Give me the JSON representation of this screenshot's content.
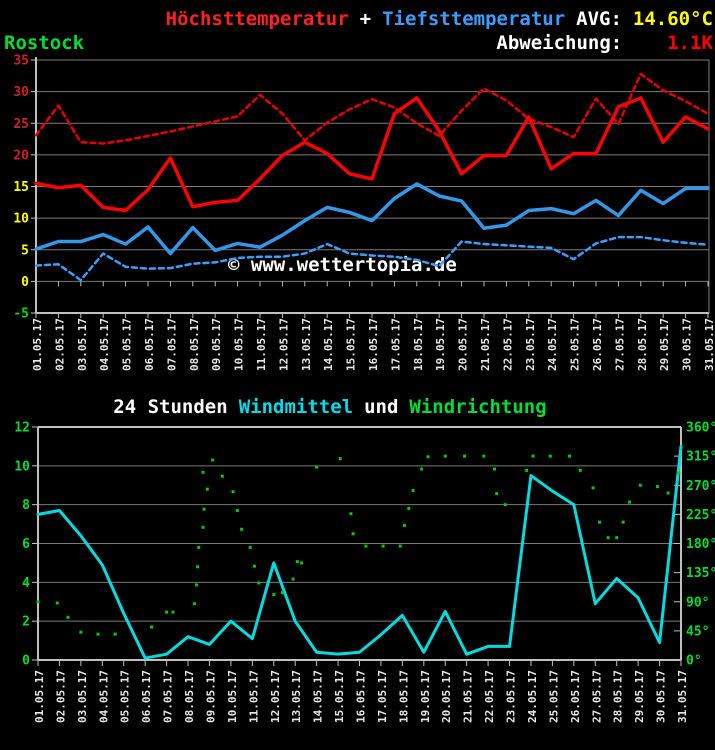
{
  "header": {
    "series1_label": "Höchsttemperatur",
    "plus": "+",
    "series2_label": "Tiefsttemperatur",
    "avg_label": "AVG:",
    "avg_value": "14.60°C",
    "station": "Rostock",
    "deviation_label": "Abweichung:",
    "deviation_value": "1.1K"
  },
  "watermark": "© www.wettertopia.de",
  "wind_title": {
    "prefix": "24 Stunden",
    "speed_label": "Windmittel",
    "conj": "und",
    "direction_label": "Windrichtung"
  },
  "colors": {
    "background": "#000000",
    "temp_high": "#ff0000",
    "temp_high_dashed": "#e80000",
    "temp_low": "#3498e8",
    "temp_low_dashed": "#3aa0ff",
    "wind_speed": "#00dce0",
    "wind_direction": "#00cc00",
    "grid": "#7a7a7a",
    "axis": "#c0c0c0",
    "tick_label_hot": "#cc2222",
    "tick_label_mild": "#ffff00",
    "tick_label_cold": "#00dd00",
    "axis_label_green": "#00dd33",
    "date_label": "#e8e8e8",
    "watermark": "#ffffff"
  },
  "dates": [
    "01.05.17",
    "02.05.17",
    "03.05.17",
    "04.05.17",
    "05.05.17",
    "06.05.17",
    "07.05.17",
    "08.05.17",
    "09.05.17",
    "10.05.17",
    "11.05.17",
    "12.05.17",
    "13.05.17",
    "14.05.17",
    "15.05.17",
    "16.05.17",
    "17.05.17",
    "18.05.17",
    "19.05.17",
    "20.05.17",
    "21.05.17",
    "22.05.17",
    "23.05.17",
    "24.05.17",
    "25.05.17",
    "26.05.17",
    "27.05.17",
    "28.05.17",
    "29.05.17",
    "30.05.17",
    "31.05.17"
  ],
  "chart_data": [
    {
      "type": "line",
      "title": "Höchsttemperatur + Tiefsttemperatur",
      "station": "Rostock",
      "avg": "14.60°C",
      "deviation": "1.1K",
      "ylim": [
        -5,
        35
      ],
      "ytick_step": 5,
      "grid": true,
      "x_labels": [
        "01.05.17",
        "02.05.17",
        "03.05.17",
        "04.05.17",
        "05.05.17",
        "06.05.17",
        "07.05.17",
        "08.05.17",
        "09.05.17",
        "10.05.17",
        "11.05.17",
        "12.05.17",
        "13.05.17",
        "14.05.17",
        "15.05.17",
        "16.05.17",
        "17.05.17",
        "18.05.17",
        "19.05.17",
        "20.05.17",
        "21.05.17",
        "22.05.17",
        "23.05.17",
        "24.05.17",
        "25.05.17",
        "26.05.17",
        "27.05.17",
        "28.05.17",
        "29.05.17",
        "30.05.17",
        "31.05.17"
      ],
      "series": [
        {
          "name": "high_dashed",
          "line": "dashed",
          "color_key": "temp_high_dashed",
          "width": 2.5,
          "values": [
            23.1,
            27.8,
            22.0,
            21.8,
            22.3,
            23.0,
            23.7,
            24.5,
            25.3,
            26.1,
            29.5,
            26.5,
            22.3,
            25.1,
            27.2,
            28.8,
            27.5,
            25.0,
            23.0,
            27.0,
            30.5,
            28.6,
            25.7,
            24.4,
            22.8,
            28.9,
            24.9,
            32.8,
            30.2,
            28.5,
            26.5
          ]
        },
        {
          "name": "low_dashed",
          "line": "dashed",
          "color_key": "temp_low_dashed",
          "width": 2.5,
          "values": [
            2.5,
            2.7,
            0.2,
            4.4,
            2.3,
            2.0,
            2.1,
            2.8,
            3.0,
            3.7,
            3.9,
            3.9,
            4.4,
            5.9,
            4.4,
            4.1,
            3.9,
            3.4,
            2.4,
            6.3,
            5.9,
            5.7,
            5.5,
            5.3,
            3.5,
            6.0,
            7.0,
            7.0,
            6.5,
            6.1,
            5.8
          ]
        },
        {
          "name": "hoechsttemperatur",
          "line": "solid",
          "color_key": "temp_high",
          "width": 3.5,
          "values": [
            15.5,
            14.8,
            15.2,
            11.7,
            11.2,
            14.5,
            19.5,
            11.8,
            12.5,
            12.8,
            16.2,
            19.9,
            22.0,
            20.2,
            17.0,
            16.2,
            26.5,
            29.0,
            23.8,
            17.0,
            19.9,
            19.9,
            26.0,
            17.8,
            20.2,
            20.2,
            27.6,
            29.0,
            22.0,
            26.0,
            24.1
          ]
        },
        {
          "name": "tiefsttemperatur",
          "line": "solid",
          "color_key": "temp_low",
          "width": 3.5,
          "values": [
            5.1,
            6.3,
            6.3,
            7.4,
            5.9,
            8.6,
            4.4,
            8.5,
            4.9,
            6.0,
            5.4,
            7.3,
            9.6,
            11.7,
            10.9,
            9.6,
            13.1,
            15.4,
            13.5,
            12.7,
            8.4,
            8.9,
            11.2,
            11.5,
            10.7,
            12.8,
            10.4,
            14.4,
            12.3,
            14.7,
            14.7
          ]
        }
      ]
    },
    {
      "type": "line_scatter",
      "title": "24 Stunden Windmittel und Windrichtung",
      "left_axis": {
        "lim": [
          0,
          12
        ],
        "tick_step": 2
      },
      "right_axis": {
        "lim": [
          0,
          360
        ],
        "tick_step": 45,
        "suffix": "°"
      },
      "x_labels": [
        "01.05.17",
        "02.05.17",
        "03.05.17",
        "04.05.17",
        "05.05.17",
        "06.05.17",
        "07.05.17",
        "08.05.17",
        "09.05.17",
        "10.05.17",
        "11.05.17",
        "12.05.17",
        "13.05.17",
        "14.05.17",
        "15.05.17",
        "16.05.17",
        "17.05.17",
        "18.05.17",
        "19.05.17",
        "20.05.17",
        "21.05.17",
        "22.05.17",
        "23.05.17",
        "24.05.17",
        "25.05.17",
        "26.05.17",
        "27.05.17",
        "28.05.17",
        "29.05.17",
        "30.05.17",
        "31.05.17"
      ],
      "series": [
        {
          "name": "windmittel",
          "kind": "line",
          "color_key": "wind_speed",
          "width": 3,
          "values": [
            7.5,
            7.7,
            6.4,
            4.9,
            2.4,
            0.1,
            0.3,
            1.2,
            0.8,
            2.0,
            1.1,
            5.0,
            2.0,
            0.4,
            0.3,
            0.4,
            1.3,
            2.3,
            0.4,
            2.5,
            0.3,
            0.7,
            0.7,
            9.5,
            8.7,
            8.0,
            2.9,
            4.2,
            3.2,
            0.9,
            11.0
          ]
        },
        {
          "name": "windrichtung",
          "kind": "scatter",
          "color_key": "wind_direction",
          "points": [
            [
              1.0,
              90
            ],
            [
              1.9,
              88
            ],
            [
              2.4,
              66
            ],
            [
              3.0,
              43
            ],
            [
              3.8,
              40
            ],
            [
              4.6,
              40
            ],
            [
              6.3,
              51
            ],
            [
              7.0,
              74
            ],
            [
              7.3,
              74
            ],
            [
              8.3,
              87
            ],
            [
              8.4,
              116
            ],
            [
              8.45,
              144
            ],
            [
              8.5,
              174
            ],
            [
              8.7,
              205
            ],
            [
              8.75,
              233
            ],
            [
              8.9,
              264
            ],
            [
              8.7,
              290
            ],
            [
              9.15,
              309
            ],
            [
              9.6,
              284
            ],
            [
              10.1,
              260
            ],
            [
              10.3,
              231
            ],
            [
              10.5,
              202
            ],
            [
              10.9,
              174
            ],
            [
              11.1,
              145
            ],
            [
              11.3,
              119
            ],
            [
              12.0,
              101
            ],
            [
              12.4,
              104
            ],
            [
              12.9,
              125
            ],
            [
              13.1,
              152
            ],
            [
              13.3,
              150
            ],
            [
              14.0,
              298
            ],
            [
              15.1,
              311
            ],
            [
              15.6,
              226
            ],
            [
              15.7,
              195
            ],
            [
              16.3,
              176
            ],
            [
              17.1,
              176
            ],
            [
              17.9,
              176
            ],
            [
              18.1,
              208
            ],
            [
              18.3,
              234
            ],
            [
              18.5,
              262
            ],
            [
              18.9,
              295
            ],
            [
              19.2,
              314
            ],
            [
              20.0,
              315
            ],
            [
              20.9,
              315
            ],
            [
              21.8,
              315
            ],
            [
              22.3,
              295
            ],
            [
              22.4,
              257
            ],
            [
              22.8,
              240
            ],
            [
              23.8,
              293
            ],
            [
              24.1,
              315
            ],
            [
              24.9,
              315
            ],
            [
              25.8,
              315
            ],
            [
              26.3,
              293
            ],
            [
              26.9,
              266
            ],
            [
              27.2,
              213
            ],
            [
              27.6,
              189
            ],
            [
              28.0,
              189
            ],
            [
              28.3,
              213
            ],
            [
              28.6,
              244
            ],
            [
              29.1,
              270
            ],
            [
              29.9,
              268
            ],
            [
              30.4,
              258
            ],
            [
              30.9,
              289
            ]
          ]
        }
      ]
    }
  ]
}
